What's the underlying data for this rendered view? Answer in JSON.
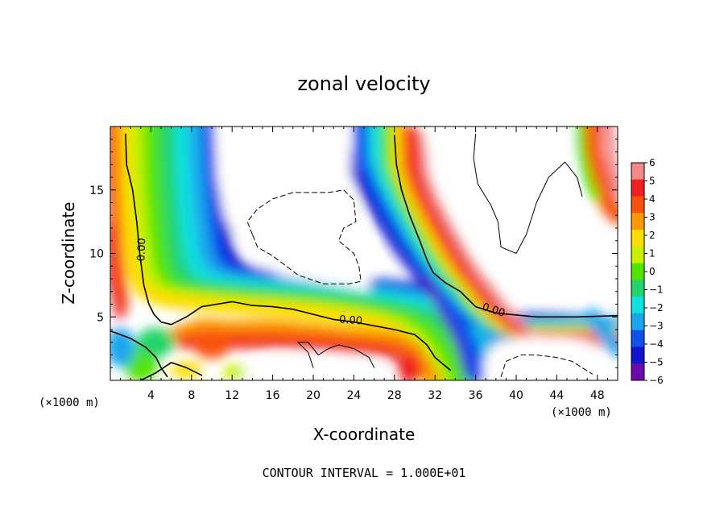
{
  "chart_data": {
    "type": "heatmap",
    "title": "zonal velocity",
    "xlabel": "X-coordinate",
    "ylabel": "Z-coordinate",
    "x_multiplier": "(×1000 m)",
    "z_multiplier": "(×1000 m)",
    "footer": "CONTOUR INTERVAL = 1.000E+01",
    "xlim": [
      0,
      50
    ],
    "ylim": [
      0,
      20
    ],
    "x_ticks": [
      4,
      8,
      12,
      16,
      20,
      24,
      28,
      32,
      36,
      40,
      44,
      48
    ],
    "y_ticks": [
      5,
      10,
      15
    ],
    "colorbar": {
      "ticks": [
        "6",
        "5",
        "4",
        "3",
        "2",
        "1",
        "0",
        "−1",
        "−2",
        "−3",
        "−4",
        "−5",
        "−6"
      ],
      "colors": [
        "#f28a8a",
        "#ee2020",
        "#f8520c",
        "#fb9a05",
        "#fddc00",
        "#c8f000",
        "#52e400",
        "#22d46a",
        "#10e0e0",
        "#1aa6ec",
        "#1050ec",
        "#1414d0",
        "#6a0aa8"
      ]
    },
    "contour_labels": [
      {
        "text": "0.00",
        "x": 3.0,
        "z": 10.3,
        "angle": -88
      },
      {
        "text": "0.00",
        "x": 23.7,
        "z": 4.8,
        "angle": 4
      },
      {
        "text": "0.00",
        "x": 37.8,
        "z": 5.6,
        "angle": 18
      }
    ],
    "contours": [
      {
        "level": 0,
        "style": "solid",
        "points": [
          [
            1.5,
            19.4
          ],
          [
            1.6,
            17
          ],
          [
            2.2,
            15
          ],
          [
            2.6,
            12.5
          ],
          [
            2.9,
            10
          ],
          [
            3.3,
            7.5
          ],
          [
            3.8,
            6
          ],
          [
            4.3,
            5.2
          ],
          [
            5.0,
            4.6
          ],
          [
            6.0,
            4.4
          ],
          [
            7.5,
            5.0
          ],
          [
            9.0,
            5.8
          ],
          [
            10.5,
            6.0
          ],
          [
            12.0,
            6.2
          ],
          [
            14.0,
            5.9
          ],
          [
            16.0,
            5.8
          ],
          [
            18.0,
            5.6
          ],
          [
            20.0,
            5.2
          ],
          [
            22.0,
            4.8
          ],
          [
            24.0,
            4.6
          ],
          [
            26.0,
            4.3
          ],
          [
            28.0,
            4.0
          ],
          [
            30.0,
            3.6
          ],
          [
            31.2,
            2.8
          ],
          [
            32.0,
            1.8
          ],
          [
            33.5,
            0.8
          ]
        ]
      },
      {
        "level": 0,
        "style": "solid",
        "points": [
          [
            0.0,
            3.9
          ],
          [
            2.0,
            3.3
          ],
          [
            3.5,
            2.6
          ],
          [
            4.5,
            1.8
          ],
          [
            5.0,
            1.0
          ],
          [
            5.6,
            0.3
          ]
        ]
      },
      {
        "level": 0,
        "style": "solid",
        "points": [
          [
            3.0,
            0.0
          ],
          [
            4.5,
            0.6
          ],
          [
            6.0,
            1.4
          ],
          [
            7.5,
            1.0
          ],
          [
            9.0,
            0.4
          ]
        ]
      },
      {
        "level": 0,
        "style": "solid",
        "points": [
          [
            28.0,
            19.3
          ],
          [
            28.2,
            17
          ],
          [
            28.7,
            15
          ],
          [
            29.5,
            13
          ],
          [
            30.5,
            11
          ],
          [
            31.2,
            9.5
          ],
          [
            31.8,
            8.5
          ],
          [
            33.0,
            7.7
          ],
          [
            34.5,
            7.0
          ],
          [
            36.0,
            5.8
          ],
          [
            38.0,
            5.3
          ],
          [
            42.0,
            5.0
          ],
          [
            46.0,
            5.0
          ],
          [
            50.0,
            5.1
          ]
        ]
      },
      {
        "level": 10,
        "style": "solid",
        "points": [
          [
            36.0,
            19.4
          ],
          [
            35.8,
            17.5
          ],
          [
            36.2,
            15.5
          ],
          [
            37.5,
            13.8
          ],
          [
            38.2,
            12.5
          ],
          [
            38.5,
            10.5
          ],
          [
            40.0,
            10.0
          ],
          [
            41.0,
            11.5
          ],
          [
            42.0,
            14.0
          ],
          [
            43.2,
            16.0
          ],
          [
            44.8,
            17.2
          ],
          [
            46.0,
            16.0
          ],
          [
            46.5,
            14.5
          ]
        ]
      },
      {
        "level": 10,
        "style": "solid",
        "points": [
          [
            20.0,
            1.0
          ],
          [
            19.5,
            2.2
          ],
          [
            18.5,
            3.0
          ],
          [
            19.5,
            3.0
          ],
          [
            20.5,
            2.0
          ],
          [
            21.5,
            2.5
          ],
          [
            22.5,
            2.8
          ],
          [
            24.0,
            2.5
          ],
          [
            25.5,
            1.8
          ],
          [
            26.0,
            1.0
          ]
        ]
      },
      {
        "level": -10,
        "style": "dashed",
        "points": [
          [
            14.0,
            11.5
          ],
          [
            13.5,
            12.5
          ],
          [
            14.5,
            13.5
          ],
          [
            16.0,
            14.3
          ],
          [
            18.0,
            14.8
          ],
          [
            21.5,
            14.8
          ],
          [
            23.0,
            15.0
          ],
          [
            24.0,
            14.2
          ],
          [
            24.2,
            12.5
          ],
          [
            23.0,
            12.0
          ],
          [
            22.5,
            11.0
          ],
          [
            24.0,
            10.0
          ],
          [
            24.5,
            9.0
          ],
          [
            24.7,
            7.8
          ],
          [
            23.5,
            7.6
          ],
          [
            21.0,
            7.6
          ],
          [
            18.5,
            8.3
          ],
          [
            16.0,
            9.8
          ],
          [
            14.5,
            10.5
          ],
          [
            14.0,
            11.5
          ]
        ]
      },
      {
        "level": -10,
        "style": "dashed",
        "points": [
          [
            38.5,
            0.3
          ],
          [
            39.0,
            1.5
          ],
          [
            40.5,
            2.0
          ],
          [
            42.0,
            2.0
          ],
          [
            44.0,
            1.8
          ],
          [
            45.5,
            1.5
          ],
          [
            46.5,
            1.0
          ],
          [
            47.5,
            0.5
          ]
        ]
      }
    ]
  }
}
